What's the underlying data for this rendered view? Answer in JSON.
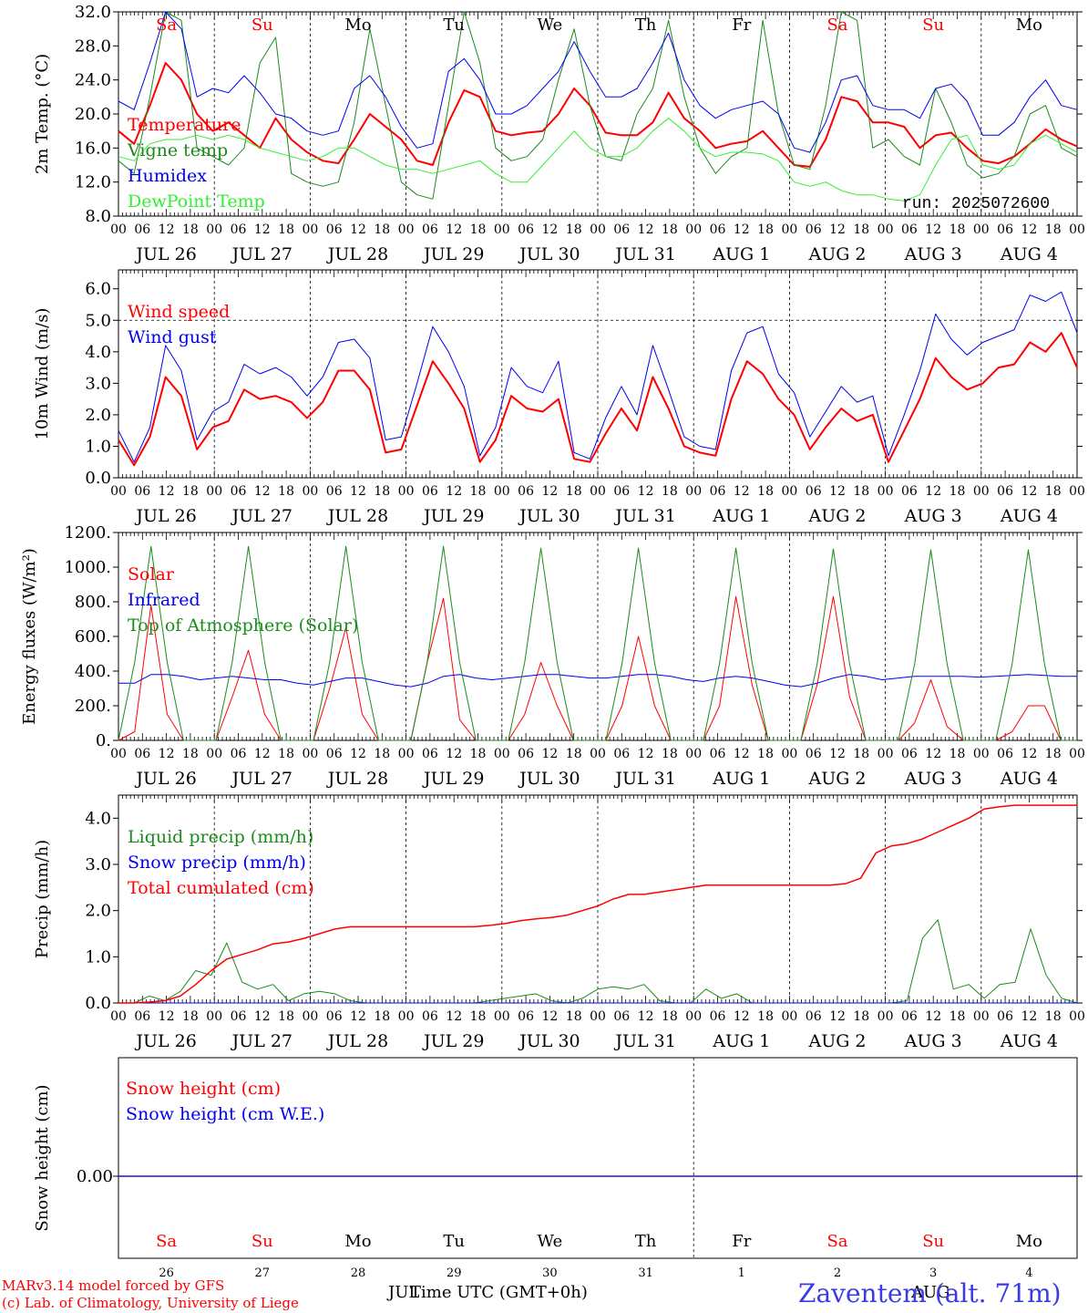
{
  "colors": {
    "temperature": "#ff0000",
    "vigne": "#1a8a1a",
    "humidex": "#0000ee",
    "dewpoint": "#33ee33",
    "solar": "#ff0000",
    "infrared": "#0000ee",
    "toa": "#1a8a1a",
    "liquid": "#1a8a1a",
    "snow": "#0000ee",
    "cumulated": "#ff0000",
    "weekend": "#ff0000",
    "weekday": "#000000"
  },
  "days": {
    "weekdays": [
      "Sa",
      "Su",
      "Mo",
      "Tu",
      "We",
      "Th",
      "Fr",
      "Sa",
      "Su",
      "Mo"
    ],
    "weekend_flags": [
      true,
      true,
      false,
      false,
      false,
      false,
      false,
      true,
      true,
      false
    ],
    "date_labels": [
      "JUL 26",
      "JUL 27",
      "JUL 28",
      "JUL 29",
      "JUL 30",
      "JUL 31",
      "AUG  1",
      "AUG  2",
      "AUG  3",
      "AUG  4"
    ],
    "day_numbers": [
      "26",
      "27",
      "28",
      "29",
      "30",
      "31",
      "1",
      "2",
      "3",
      "4"
    ],
    "hour_ticks": [
      "00",
      "06",
      "12",
      "18"
    ],
    "final_tick": "00"
  },
  "labels": {
    "run": "run: 2025072600",
    "month_jul": "JUL",
    "month_aug": "AUG",
    "xlabel": "Time UTC (GMT+0h)",
    "credit_line1": "MARv3.14 model forced by GFS",
    "credit_line2": "(c) Lab. of Climatology, University of Liege",
    "station": "Zaventem (alt. 71m)"
  },
  "chart_data": [
    {
      "type": "line",
      "ylabel": "2m Temp. (°C)",
      "ylim": [
        8,
        32
      ],
      "yticks": [
        "8.0",
        "12.0",
        "16.0",
        "20.0",
        "24.0",
        "28.0",
        "32.0"
      ],
      "x_hours_step": 6,
      "series": [
        {
          "name": "Temperature",
          "values": [
            18,
            16.5,
            21,
            26,
            24,
            20,
            18,
            19,
            17.5,
            16,
            19.5,
            17,
            15.5,
            14.5,
            14.2,
            17,
            20,
            18.5,
            17,
            14.5,
            14,
            19,
            22.8,
            22,
            18,
            17.5,
            17.8,
            18,
            20,
            23,
            21,
            17.8,
            17.5,
            17.5,
            19,
            22.5,
            19.5,
            18,
            16,
            16.5,
            16.8,
            18,
            16,
            14,
            13.8,
            17,
            22,
            21.5,
            19,
            19,
            18.5,
            16,
            17.5,
            17.8,
            16,
            14.5,
            14.2,
            15,
            16.5,
            18.2,
            17,
            16.2
          ]
        },
        {
          "name": "Vigne temp",
          "values": [
            14.5,
            13,
            22,
            33,
            31,
            16,
            15,
            14,
            16,
            26,
            29,
            13,
            12,
            11.5,
            12,
            19,
            30,
            21,
            12,
            10.5,
            10,
            21,
            32,
            26,
            16,
            14.5,
            15,
            17,
            24,
            30,
            21,
            15,
            14.5,
            20,
            23,
            31,
            22,
            16,
            13,
            15,
            16,
            31,
            20,
            14,
            13.5,
            21,
            33,
            31,
            16,
            17,
            15,
            14,
            23,
            19,
            14,
            12.5,
            13,
            15,
            20,
            21,
            16,
            15
          ]
        },
        {
          "name": "Humidex",
          "values": [
            21.5,
            20.5,
            26,
            32,
            30,
            22,
            23,
            22.5,
            24.5,
            22.5,
            20,
            19.5,
            18,
            17.5,
            18,
            23,
            24.5,
            22,
            18.5,
            16,
            16.5,
            25,
            26.5,
            24,
            20,
            20,
            21,
            23,
            25,
            28.5,
            25,
            22,
            22,
            23,
            26,
            29.5,
            24,
            21,
            19.5,
            20.5,
            21,
            21.5,
            20,
            16,
            15.5,
            19,
            24,
            24.5,
            21,
            20.5,
            20.5,
            19.5,
            23,
            23.5,
            21.5,
            17.5,
            17.5,
            19,
            22,
            24,
            21,
            20.5
          ]
        },
        {
          "name": "DewPoint Temp",
          "values": [
            15,
            14.5,
            16.5,
            17,
            17,
            17.5,
            17,
            17.5,
            17,
            16,
            15.5,
            15,
            14.5,
            15,
            16,
            16,
            15,
            14,
            13.5,
            13.5,
            13,
            13.5,
            14,
            14.5,
            13,
            12,
            12,
            14,
            16,
            18,
            16,
            15,
            15,
            16,
            18,
            19.5,
            18,
            16,
            15,
            15.5,
            15.5,
            15.3,
            14.5,
            12,
            11.5,
            12,
            11,
            10.5,
            10.5,
            10,
            9.8,
            10.5,
            14,
            17,
            17.5,
            14,
            13.5,
            14,
            16.5,
            17.5,
            16.5,
            15.5
          ]
        }
      ]
    },
    {
      "type": "line",
      "ylabel": "10m Wind (m/s)",
      "ylim": [
        0,
        6.6
      ],
      "yticks": [
        "0.0",
        "1.0",
        "2.0",
        "3.0",
        "4.0",
        "5.0",
        "6.0"
      ],
      "reference_line": 5.0,
      "series": [
        {
          "name": "Wind speed",
          "values": [
            1.2,
            0.4,
            1.3,
            3.2,
            2.6,
            0.9,
            1.6,
            1.8,
            2.8,
            2.5,
            2.6,
            2.4,
            1.9,
            2.4,
            3.4,
            3.4,
            2.8,
            0.8,
            0.9,
            2.3,
            3.7,
            3.0,
            2.2,
            0.5,
            1.2,
            2.6,
            2.2,
            2.1,
            2.5,
            0.6,
            0.5,
            1.4,
            2.2,
            1.5,
            3.2,
            2.2,
            1.0,
            0.8,
            0.7,
            2.5,
            3.7,
            3.3,
            2.5,
            2.0,
            0.9,
            1.6,
            2.2,
            1.8,
            2.0,
            0.5,
            1.5,
            2.5,
            3.8,
            3.2,
            2.8,
            3.0,
            3.5,
            3.6,
            4.3,
            4.0,
            4.6,
            3.5
          ]
        },
        {
          "name": "Wind gust",
          "values": [
            1.5,
            0.5,
            1.6,
            4.2,
            3.4,
            1.2,
            2.1,
            2.4,
            3.6,
            3.3,
            3.5,
            3.2,
            2.6,
            3.2,
            4.3,
            4.4,
            3.8,
            1.2,
            1.3,
            3.0,
            4.8,
            4.0,
            2.9,
            0.7,
            1.6,
            3.5,
            2.9,
            2.7,
            3.7,
            0.8,
            0.6,
            1.9,
            2.9,
            2.0,
            4.2,
            2.8,
            1.3,
            1.0,
            0.9,
            3.4,
            4.6,
            4.8,
            3.3,
            2.7,
            1.3,
            2.1,
            2.9,
            2.4,
            2.6,
            0.7,
            2.0,
            3.4,
            5.2,
            4.4,
            3.9,
            4.3,
            4.5,
            4.7,
            5.8,
            5.6,
            5.9,
            4.6
          ]
        }
      ]
    },
    {
      "type": "line",
      "ylabel": "Energy fluxes (W/m²)",
      "ylim": [
        0,
        1200
      ],
      "yticks": [
        "0.",
        "200.",
        "400.",
        "600.",
        "800.",
        "1000.",
        "1200."
      ],
      "series": [
        {
          "name": "Solar",
          "values": [
            0,
            50,
            780,
            150,
            0,
            0,
            0,
            250,
            520,
            150,
            0,
            0,
            0,
            300,
            650,
            150,
            0,
            0,
            0,
            450,
            820,
            120,
            0,
            0,
            0,
            150,
            450,
            200,
            0,
            0,
            0,
            200,
            600,
            200,
            0,
            0,
            0,
            200,
            830,
            320,
            0,
            0,
            0,
            320,
            830,
            250,
            0,
            0,
            0,
            100,
            350,
            80,
            0,
            0,
            0,
            50,
            200,
            200,
            0,
            0
          ]
        },
        {
          "name": "Infrared",
          "values": [
            330,
            330,
            380,
            380,
            370,
            350,
            360,
            370,
            360,
            350,
            350,
            330,
            320,
            340,
            360,
            360,
            340,
            320,
            310,
            330,
            370,
            380,
            360,
            350,
            360,
            370,
            380,
            380,
            370,
            360,
            360,
            370,
            380,
            380,
            370,
            350,
            340,
            360,
            370,
            360,
            340,
            320,
            310,
            330,
            360,
            380,
            370,
            350,
            360,
            370,
            370,
            370,
            370,
            365,
            370,
            375,
            380,
            375,
            370,
            370
          ]
        },
        {
          "name": "Top of Atmosphere (Solar)",
          "values": [
            0,
            450,
            1120,
            450,
            0,
            0,
            0,
            450,
            1120,
            450,
            0,
            0,
            0,
            450,
            1120,
            450,
            0,
            0,
            0,
            450,
            1120,
            450,
            0,
            0,
            0,
            450,
            1110,
            450,
            0,
            0,
            0,
            445,
            1110,
            445,
            0,
            0,
            0,
            445,
            1110,
            445,
            0,
            0,
            0,
            440,
            1105,
            440,
            0,
            0,
            0,
            440,
            1100,
            440,
            0,
            0,
            0,
            440,
            1100,
            440,
            0,
            0
          ]
        }
      ]
    },
    {
      "type": "line",
      "ylabel": "Precip (mm/h)",
      "ylim": [
        0,
        4.5
      ],
      "yticks": [
        "0.0",
        "1.0",
        "2.0",
        "3.0",
        "4.0"
      ],
      "series": [
        {
          "name": "Liquid precip (mm/h)",
          "values": [
            0,
            0,
            0.15,
            0.05,
            0.25,
            0.7,
            0.6,
            1.3,
            0.45,
            0.3,
            0.4,
            0.05,
            0.2,
            0.25,
            0.2,
            0.05,
            0,
            0,
            0,
            0,
            0,
            0,
            0,
            0,
            0.05,
            0.1,
            0.15,
            0.2,
            0.05,
            0,
            0.1,
            0.3,
            0.35,
            0.3,
            0.4,
            0.05,
            0,
            0,
            0.3,
            0.1,
            0.2,
            0,
            0,
            0,
            0,
            0,
            0,
            0,
            0,
            0,
            0,
            0.05,
            1.4,
            1.8,
            0.3,
            0.4,
            0.1,
            0.4,
            0.45,
            1.6,
            0.6,
            0.1,
            0
          ]
        },
        {
          "name": "Snow precip (mm/h)",
          "values": [
            0,
            0,
            0,
            0,
            0,
            0,
            0,
            0,
            0,
            0,
            0,
            0,
            0,
            0,
            0,
            0,
            0,
            0,
            0,
            0,
            0,
            0,
            0,
            0,
            0,
            0,
            0,
            0,
            0,
            0,
            0,
            0,
            0,
            0,
            0,
            0,
            0,
            0,
            0,
            0,
            0,
            0,
            0,
            0,
            0,
            0,
            0,
            0,
            0,
            0,
            0,
            0,
            0,
            0,
            0,
            0,
            0,
            0,
            0,
            0,
            0,
            0,
            0
          ]
        },
        {
          "name": "Total cumulated (cm)",
          "values": [
            0,
            0,
            0.02,
            0.05,
            0.15,
            0.4,
            0.7,
            0.95,
            1.05,
            1.15,
            1.28,
            1.32,
            1.4,
            1.5,
            1.6,
            1.65,
            1.65,
            1.65,
            1.65,
            1.65,
            1.65,
            1.65,
            1.65,
            1.65,
            1.68,
            1.72,
            1.78,
            1.82,
            1.85,
            1.9,
            2.0,
            2.1,
            2.25,
            2.35,
            2.35,
            2.4,
            2.45,
            2.5,
            2.55,
            2.55,
            2.55,
            2.55,
            2.55,
            2.55,
            2.55,
            2.55,
            2.55,
            2.58,
            2.7,
            3.25,
            3.4,
            3.45,
            3.55,
            3.7,
            3.85,
            4.0,
            4.2,
            4.25,
            4.28,
            4.28,
            4.28,
            4.28,
            4.28
          ]
        }
      ]
    },
    {
      "type": "line",
      "ylabel": "Snow height (cm)",
      "yticks": [
        "0.00"
      ],
      "series": [
        {
          "name": "Snow height (cm)",
          "values": [
            0,
            0
          ]
        },
        {
          "name": "Snow height (cm W.E.)",
          "values": [
            0,
            0
          ]
        }
      ]
    }
  ]
}
